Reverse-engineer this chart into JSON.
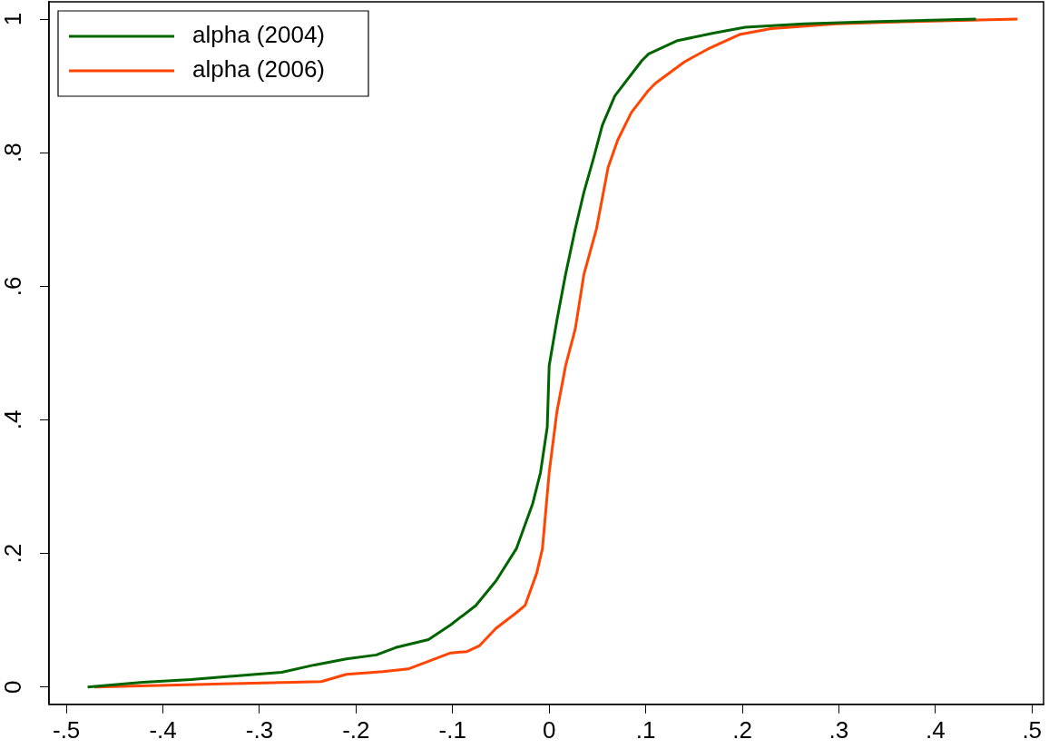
{
  "chart_data": {
    "type": "line",
    "legend": "top left",
    "marker": "none",
    "line_style": "solid",
    "xlim": [
      -0.518,
      0.512
    ],
    "ylim": [
      -0.026,
      1.026
    ],
    "xticks": [
      {
        "value": -0.5,
        "label": "-.5"
      },
      {
        "value": -0.4,
        "label": "-.4"
      },
      {
        "value": -0.3,
        "label": "-.3"
      },
      {
        "value": -0.2,
        "label": "-.2"
      },
      {
        "value": -0.1,
        "label": "-.1"
      },
      0,
      {
        "value": 0.1,
        "label": ".1"
      },
      {
        "value": 0.2,
        "label": ".2"
      },
      {
        "value": 0.3,
        "label": ".3"
      },
      {
        "value": 0.4,
        "label": ".4"
      },
      {
        "value": 0.5,
        "label": ".5"
      }
    ],
    "yticks": [
      0,
      {
        "value": 0.2,
        "label": ".2"
      },
      {
        "value": 0.4,
        "label": ".4"
      },
      {
        "value": 0.6,
        "label": ".6"
      },
      {
        "value": 0.8,
        "label": ".8"
      },
      1
    ],
    "series": [
      {
        "name": "alpha (2004)",
        "color": "#006400",
        "x": [
          -0.478,
          -0.421,
          -0.371,
          -0.313,
          -0.277,
          -0.243,
          -0.21,
          -0.179,
          -0.159,
          -0.125,
          -0.102,
          -0.076,
          -0.055,
          -0.034,
          -0.017,
          -0.009,
          -0.002,
          0.0,
          0.008,
          0.017,
          0.027,
          0.036,
          0.046,
          0.055,
          0.068,
          0.096,
          0.103,
          0.133,
          0.17,
          0.203,
          0.264,
          0.331,
          0.442
        ],
        "values": [
          0,
          0.007,
          0.011,
          0.018,
          0.022,
          0.033,
          0.042,
          0.048,
          0.059,
          0.071,
          0.093,
          0.122,
          0.159,
          0.207,
          0.275,
          0.321,
          0.389,
          0.481,
          0.549,
          0.618,
          0.686,
          0.741,
          0.792,
          0.841,
          0.885,
          0.938,
          0.948,
          0.968,
          0.979,
          0.988,
          0.993,
          0.996,
          1.0
        ]
      },
      {
        "name": "alpha (2006)",
        "color": "#ff4500",
        "x": [
          -0.471,
          -0.327,
          -0.236,
          -0.21,
          -0.172,
          -0.146,
          -0.102,
          -0.085,
          -0.072,
          -0.055,
          -0.035,
          -0.025,
          -0.013,
          -0.007,
          0.0,
          0.008,
          0.017,
          0.027,
          0.036,
          0.049,
          0.061,
          0.071,
          0.085,
          0.102,
          0.11,
          0.14,
          0.164,
          0.197,
          0.23,
          0.297,
          0.365,
          0.485
        ],
        "values": [
          0,
          0.005,
          0.008,
          0.019,
          0.023,
          0.027,
          0.051,
          0.053,
          0.062,
          0.088,
          0.11,
          0.122,
          0.17,
          0.207,
          0.321,
          0.412,
          0.481,
          0.536,
          0.618,
          0.686,
          0.778,
          0.819,
          0.86,
          0.892,
          0.904,
          0.936,
          0.955,
          0.977,
          0.986,
          0.993,
          0.996,
          1.0
        ]
      }
    ]
  }
}
